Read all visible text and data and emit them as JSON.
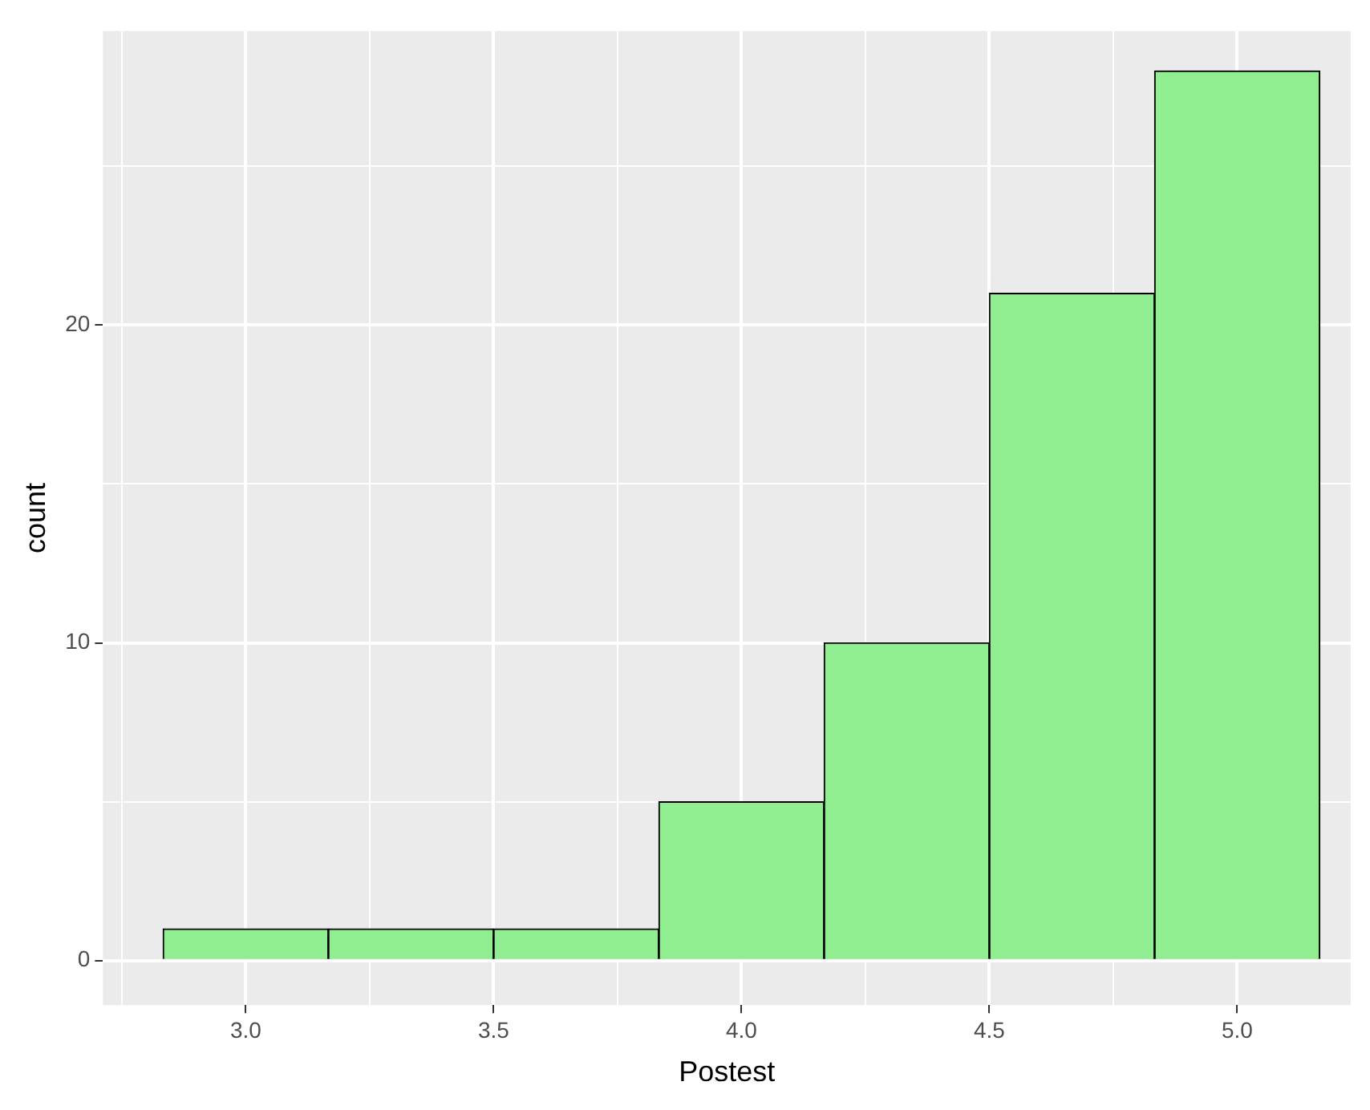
{
  "chart_data": {
    "type": "histogram",
    "xlabel": "Postest",
    "ylabel": "count",
    "bins": [
      2.8333,
      3.1667,
      3.5,
      3.8333,
      4.1667,
      4.5,
      4.8333,
      5.1667
    ],
    "values": [
      1,
      1,
      1,
      5,
      10,
      21,
      28
    ],
    "color": "#90ee90",
    "xlim": [
      2.712,
      5.229
    ],
    "xticks": [
      {
        "value": 2.75,
        "label": null
      },
      {
        "value": 3,
        "label": "3.0"
      },
      {
        "value": 3.25,
        "label": null
      },
      3.5,
      {
        "value": 3.75,
        "label": null
      },
      {
        "value": 4,
        "label": "4.0"
      },
      {
        "value": 4.25,
        "label": null
      },
      4.5,
      {
        "value": 4.75,
        "label": null
      },
      {
        "value": 5,
        "label": "5.0"
      }
    ],
    "ylim": [
      -1.4,
      29.25
    ],
    "yticks": [
      0,
      {
        "value": 5,
        "label": null
      },
      10,
      {
        "value": 15,
        "label": null
      },
      20,
      {
        "value": 25,
        "label": null
      }
    ],
    "grid": true,
    "legend": false
  }
}
